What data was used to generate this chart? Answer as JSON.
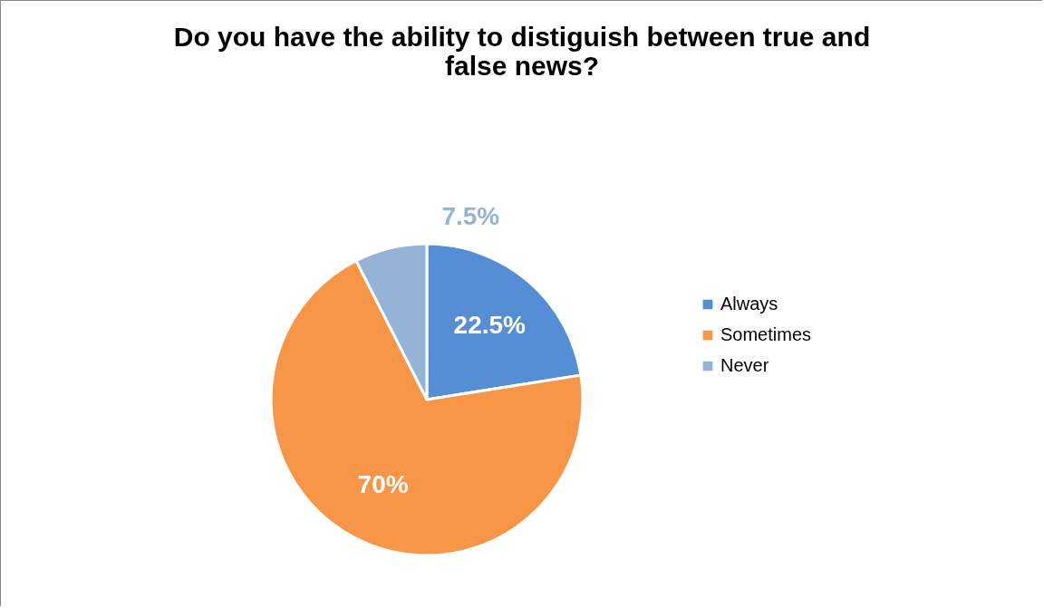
{
  "chart_data": {
    "type": "pie",
    "title": "Do you have the ability to distiguish between true and false news?",
    "categories": [
      "Always",
      "Sometimes",
      "Never"
    ],
    "values": [
      22.5,
      70,
      7.5
    ],
    "value_labels": [
      "22.5%",
      "70%",
      "7.5%"
    ],
    "colors": [
      "#558ed5",
      "#f79646",
      "#95b3d7"
    ],
    "legend": "right"
  }
}
